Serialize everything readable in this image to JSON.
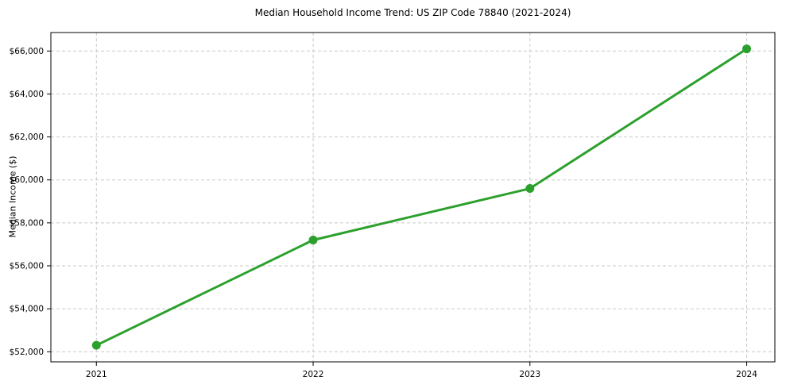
{
  "chart": {
    "title": "Median Household Income Trend: US ZIP Code 78840 (2021-2024)",
    "ylabel": "Median Income ($)"
  },
  "chart_data": {
    "type": "line",
    "title": "Median Household Income Trend: US ZIP Code 78840 (2021-2024)",
    "xlabel": "",
    "ylabel": "Median Income ($)",
    "x": [
      2021,
      2022,
      2023,
      2024
    ],
    "x_tick_labels": [
      "2021",
      "2022",
      "2023",
      "2024"
    ],
    "values": [
      52300,
      57200,
      59600,
      66100
    ],
    "series_name": "Median Household Income",
    "y_ticks": [
      52000,
      54000,
      56000,
      58000,
      60000,
      62000,
      64000,
      66000
    ],
    "y_tick_labels": [
      "$52,000",
      "$54,000",
      "$56,000",
      "$58,000",
      "$60,000",
      "$62,000",
      "$64,000",
      "$66,000"
    ],
    "xlim": [
      2020.79,
      2024.13
    ],
    "ylim": [
      51530,
      66860
    ],
    "grid": true,
    "grid_style": "dashed",
    "legend": "none",
    "line_color": "#2ca02c",
    "marker": "circle",
    "background": "#ffffff",
    "grid_color": "#c9c9c9",
    "spine_color": "#000000",
    "text_color": "#000000"
  }
}
